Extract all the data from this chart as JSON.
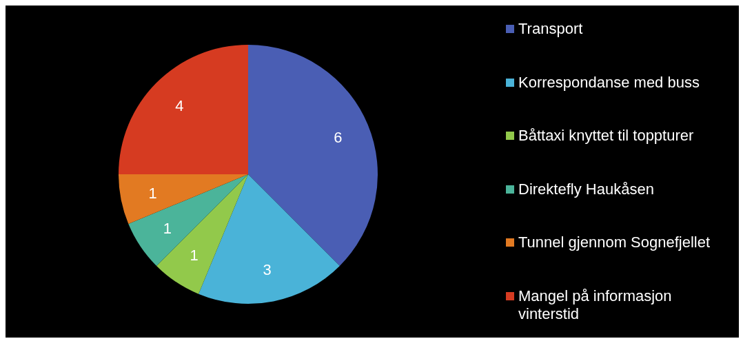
{
  "chart_data": {
    "type": "pie",
    "categories": [
      "Transport",
      "Korrespondanse med buss",
      "Båttaxi knyttet til toppturer",
      "Direktefly Haukåsen",
      "Tunnel gjennom Sognefjellet",
      "Mangel på informasjon vinterstid"
    ],
    "values": [
      6,
      3,
      1,
      1,
      1,
      4
    ],
    "colors": [
      "#4a5eb4",
      "#4ab3d8",
      "#92c94b",
      "#4bb49a",
      "#e27a22",
      "#d63b21"
    ],
    "data_labels": true,
    "legend": "right"
  }
}
